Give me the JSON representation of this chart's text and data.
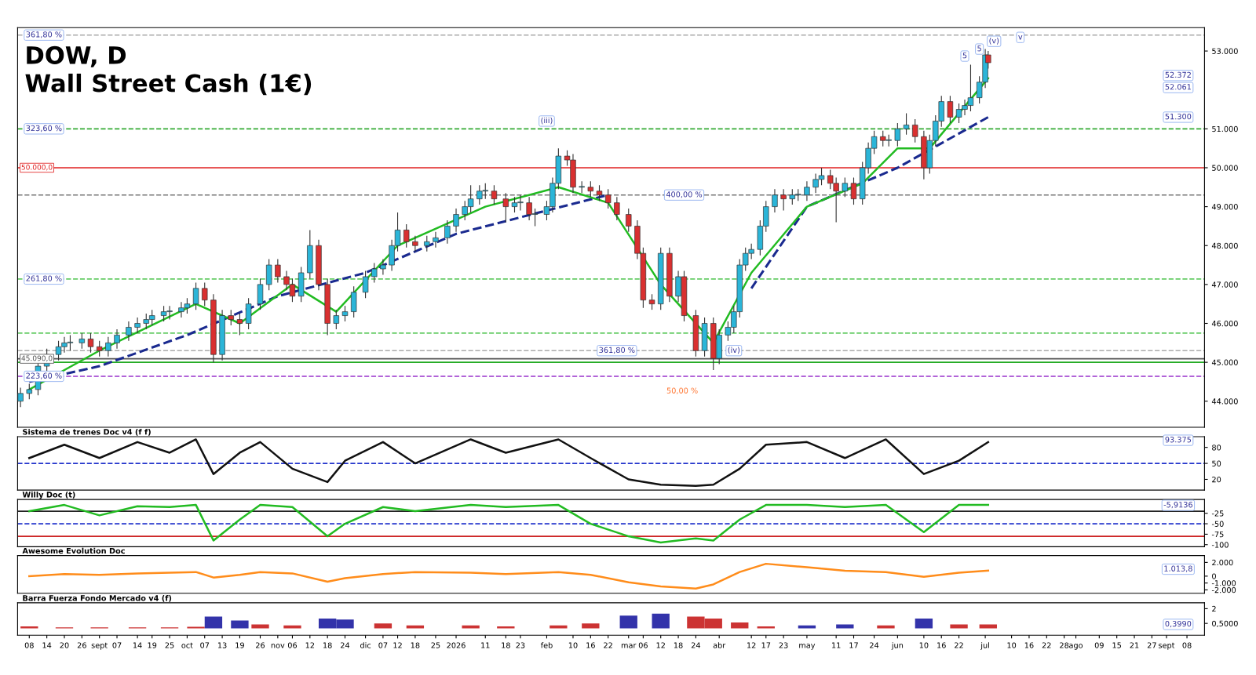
{
  "chart_data": [
    {
      "type": "candlestick",
      "title": "DOW, D",
      "subtitle": "Wall Street Cash (1€)",
      "x": [
        "2025-08-05",
        "2025-08-08",
        "2025-08-11",
        "2025-08-14",
        "2025-08-18",
        "2025-08-20",
        "2025-08-22",
        "2025-08-26",
        "2025-08-29",
        "2025-09-01",
        "2025-09-04",
        "2025-09-07",
        "2025-09-11",
        "2025-09-14",
        "2025-09-17",
        "2025-09-19",
        "2025-09-23",
        "2025-09-25",
        "2025-09-29",
        "2025-10-01",
        "2025-10-04",
        "2025-10-07",
        "2025-10-10",
        "2025-10-13",
        "2025-10-16",
        "2025-10-19",
        "2025-10-22",
        "2025-10-26",
        "2025-10-29",
        "2025-11-01",
        "2025-11-04",
        "2025-11-06",
        "2025-11-09",
        "2025-11-12",
        "2025-11-15",
        "2025-11-18",
        "2025-11-21",
        "2025-11-24",
        "2025-11-27",
        "2025-12-01",
        "2025-12-04",
        "2025-12-07",
        "2025-12-10",
        "2025-12-12",
        "2025-12-15",
        "2025-12-18",
        "2025-12-22",
        "2025-12-25",
        "2025-12-29",
        "2026-01-01",
        "2026-01-04",
        "2026-01-06",
        "2026-01-09",
        "2026-01-11",
        "2026-01-14",
        "2026-01-18",
        "2026-01-21",
        "2026-01-23",
        "2026-01-26",
        "2026-01-28",
        "2026-02-01",
        "2026-02-03",
        "2026-02-05",
        "2026-02-08",
        "2026-02-10",
        "2026-02-13",
        "2026-02-16",
        "2026-02-19",
        "2026-02-22",
        "2026-02-25",
        "2026-03-01",
        "2026-03-04",
        "2026-03-06",
        "2026-03-09",
        "2026-03-12",
        "2026-03-15",
        "2026-03-18",
        "2026-03-20",
        "2026-03-24",
        "2026-03-27",
        "2026-03-30",
        "2026-04-01",
        "2026-04-04",
        "2026-04-06",
        "2026-04-08",
        "2026-04-10",
        "2026-04-12",
        "2026-04-15",
        "2026-04-17",
        "2026-04-20",
        "2026-04-23",
        "2026-04-26",
        "2026-04-28",
        "2026-05-01",
        "2026-05-04",
        "2026-05-06",
        "2026-05-09",
        "2026-05-11",
        "2026-05-14",
        "2026-05-17",
        "2026-05-20",
        "2026-05-22",
        "2026-05-24",
        "2026-05-27",
        "2026-05-29",
        "2026-06-01",
        "2026-06-04",
        "2026-06-07",
        "2026-06-10",
        "2026-06-12",
        "2026-06-14",
        "2026-06-16",
        "2026-06-19",
        "2026-06-22",
        "2026-06-24",
        "2026-06-26",
        "2026-06-29",
        "2026-07-01",
        "2026-07-02"
      ],
      "ohlc": [
        [
          44000,
          44350,
          43850,
          44200
        ],
        [
          44200,
          44450,
          44050,
          44300
        ],
        [
          44300,
          45050,
          44150,
          44900
        ],
        [
          44900,
          45350,
          44750,
          45200
        ],
        [
          45200,
          45550,
          45050,
          45400
        ],
        [
          45400,
          45650,
          45250,
          45500
        ],
        [
          45500,
          45700,
          45300,
          45500
        ],
        [
          45500,
          45750,
          45350,
          45600
        ],
        [
          45600,
          45750,
          45250,
          45400
        ],
        [
          45400,
          45550,
          45150,
          45300
        ],
        [
          45300,
          45650,
          45150,
          45500
        ],
        [
          45500,
          45850,
          45350,
          45700
        ],
        [
          45700,
          46050,
          45550,
          45900
        ],
        [
          45900,
          46150,
          45750,
          46000
        ],
        [
          46000,
          46250,
          45850,
          46100
        ],
        [
          46100,
          46350,
          45950,
          46200
        ],
        [
          46200,
          46450,
          46050,
          46300
        ],
        [
          46300,
          46450,
          46100,
          46300
        ],
        [
          46300,
          46550,
          46150,
          46400
        ],
        [
          46400,
          46650,
          46250,
          46500
        ],
        [
          46500,
          47050,
          46350,
          46900
        ],
        [
          46900,
          47050,
          46450,
          46600
        ],
        [
          46600,
          46750,
          45000,
          45200
        ],
        [
          45200,
          46350,
          45050,
          46200
        ],
        [
          46200,
          46350,
          45950,
          46100
        ],
        [
          46100,
          46250,
          45700,
          46000
        ],
        [
          46000,
          46650,
          45850,
          46500
        ],
        [
          46500,
          47150,
          46350,
          47000
        ],
        [
          47000,
          47650,
          46850,
          47500
        ],
        [
          47500,
          47650,
          47050,
          47200
        ],
        [
          47200,
          47350,
          46850,
          47000
        ],
        [
          47000,
          47150,
          46550,
          46700
        ],
        [
          46700,
          47450,
          46550,
          47300
        ],
        [
          47300,
          48400,
          47150,
          48000
        ],
        [
          48000,
          48150,
          46850,
          47000
        ],
        [
          47000,
          47150,
          45700,
          46000
        ],
        [
          46000,
          46350,
          45850,
          46200
        ],
        [
          46200,
          46450,
          46050,
          46300
        ],
        [
          46300,
          46950,
          46150,
          46800
        ],
        [
          46800,
          47350,
          46650,
          47200
        ],
        [
          47200,
          47550,
          47050,
          47400
        ],
        [
          47400,
          47650,
          47250,
          47500
        ],
        [
          47500,
          48150,
          47350,
          48000
        ],
        [
          48000,
          48850,
          47850,
          48400
        ],
        [
          48400,
          48550,
          47950,
          48100
        ],
        [
          48100,
          48250,
          47850,
          48000
        ],
        [
          48000,
          48250,
          47850,
          48100
        ],
        [
          48100,
          48350,
          47950,
          48200
        ],
        [
          48200,
          48650,
          48050,
          48500
        ],
        [
          48500,
          48950,
          48350,
          48800
        ],
        [
          48800,
          49150,
          48650,
          49000
        ],
        [
          49000,
          49550,
          48850,
          49200
        ],
        [
          49200,
          49550,
          49050,
          49400
        ],
        [
          49400,
          49600,
          49200,
          49400
        ],
        [
          49400,
          49550,
          49050,
          49200
        ],
        [
          49200,
          49350,
          48600,
          49000
        ],
        [
          49000,
          49250,
          48850,
          49100
        ],
        [
          49100,
          49300,
          48900,
          49100
        ],
        [
          49100,
          49250,
          48650,
          48800
        ],
        [
          48800,
          48950,
          48500,
          48800
        ],
        [
          48800,
          49150,
          48650,
          49000
        ],
        [
          49000,
          49750,
          48850,
          49600
        ],
        [
          49600,
          50500,
          49450,
          50300
        ],
        [
          50300,
          50450,
          50050,
          50200
        ],
        [
          50200,
          50350,
          49350,
          49500
        ],
        [
          49500,
          49650,
          49350,
          49500
        ],
        [
          49500,
          49650,
          49250,
          49400
        ],
        [
          49400,
          49550,
          49150,
          49300
        ],
        [
          49300,
          49450,
          48950,
          49100
        ],
        [
          49100,
          49250,
          48650,
          48800
        ],
        [
          48800,
          48950,
          48350,
          48500
        ],
        [
          48500,
          48650,
          47650,
          47800
        ],
        [
          47800,
          47950,
          46400,
          46600
        ],
        [
          46600,
          46750,
          46350,
          46500
        ],
        [
          46500,
          47950,
          46350,
          47800
        ],
        [
          47800,
          47950,
          46550,
          46700
        ],
        [
          46700,
          47350,
          46550,
          47200
        ],
        [
          47200,
          47350,
          46050,
          46200
        ],
        [
          46200,
          46350,
          45150,
          45300
        ],
        [
          45300,
          46150,
          45150,
          46000
        ],
        [
          46000,
          46150,
          44800,
          45100
        ],
        [
          45100,
          45850,
          44950,
          45700
        ],
        [
          45700,
          46050,
          45550,
          45900
        ],
        [
          45900,
          46450,
          45750,
          46300
        ],
        [
          46300,
          47650,
          46150,
          47500
        ],
        [
          47500,
          47950,
          47350,
          47800
        ],
        [
          47800,
          48050,
          47650,
          47900
        ],
        [
          47900,
          48650,
          47750,
          48500
        ],
        [
          48500,
          49150,
          48350,
          49000
        ],
        [
          49000,
          49450,
          48850,
          49300
        ],
        [
          49300,
          49450,
          48900,
          49200
        ],
        [
          49200,
          49450,
          49050,
          49300
        ],
        [
          49300,
          49450,
          49150,
          49300
        ],
        [
          49300,
          49650,
          49150,
          49500
        ],
        [
          49500,
          49850,
          49350,
          49700
        ],
        [
          49700,
          50000,
          49550,
          49800
        ],
        [
          49800,
          49950,
          49450,
          49600
        ],
        [
          49600,
          49750,
          48600,
          49400
        ],
        [
          49400,
          49750,
          49250,
          49600
        ],
        [
          49600,
          49750,
          49050,
          49200
        ],
        [
          49200,
          50150,
          49050,
          50000
        ],
        [
          50000,
          50650,
          49850,
          50500
        ],
        [
          50500,
          50950,
          50350,
          50800
        ],
        [
          50800,
          50950,
          50550,
          50700
        ],
        [
          50700,
          50850,
          50550,
          50700
        ],
        [
          50700,
          51150,
          50550,
          51000
        ],
        [
          51000,
          51400,
          50850,
          51100
        ],
        [
          51100,
          51250,
          50650,
          50800
        ],
        [
          50800,
          50950,
          49700,
          50000
        ],
        [
          50000,
          50850,
          49850,
          50700
        ],
        [
          50700,
          51350,
          50550,
          51200
        ],
        [
          51200,
          51850,
          51050,
          51700
        ],
        [
          51700,
          51850,
          51150,
          51300
        ],
        [
          51300,
          51650,
          51150,
          51500
        ],
        [
          51500,
          51750,
          51350,
          51600
        ],
        [
          51600,
          52650,
          51450,
          51800
        ],
        [
          51800,
          52350,
          51650,
          52200
        ],
        [
          52200,
          53050,
          52050,
          52900
        ],
        [
          52900,
          53000,
          52550,
          52700
        ]
      ],
      "series": [
        {
          "type": "line",
          "line_style": "dashed",
          "color": "#1a2a8f",
          "x": [
            "2025-08-08",
            "2025-09-01",
            "2025-10-01",
            "2025-11-01",
            "2025-12-01",
            "2026-01-01",
            "2026-02-01",
            "2026-02-22",
            "2026-03-15",
            "2026-04-12",
            "2026-05-01",
            "2026-06-01",
            "2026-07-02"
          ],
          "values": [
            44500,
            44900,
            45700,
            46700,
            47300,
            48300,
            48900,
            49300,
            null,
            46900,
            49000,
            50000,
            51300
          ]
        },
        {
          "type": "line",
          "line_style": "solid",
          "color": "#22bb22",
          "x": [
            "2025-08-08",
            "2025-09-01",
            "2025-10-04",
            "2025-10-19",
            "2025-11-06",
            "2025-11-21",
            "2025-12-12",
            "2026-01-11",
            "2026-02-05",
            "2026-02-22",
            "2026-03-12",
            "2026-03-30",
            "2026-04-12",
            "2026-05-01",
            "2026-05-20",
            "2026-06-01",
            "2026-06-12",
            "2026-07-02"
          ],
          "values": [
            44300,
            45300,
            46500,
            46000,
            47000,
            46300,
            48000,
            49000,
            49500,
            49100,
            47000,
            45500,
            47300,
            49000,
            49600,
            50500,
            50500,
            52300
          ]
        }
      ],
      "xlim": [
        "2025-08-04",
        "2026-09-14"
      ],
      "ylim": [
        43330,
        53600
      ],
      "yticks": [
        {
          "value": 44000,
          "label": "44.000"
        },
        {
          "value": 45000,
          "label": "45.000"
        },
        {
          "value": 46000,
          "label": "46.000"
        },
        {
          "value": 47000,
          "label": "47.000"
        },
        {
          "value": 48000,
          "label": "48.000"
        },
        {
          "value": 49000,
          "label": "49.000"
        },
        {
          "value": 50000,
          "label": "50.000"
        },
        {
          "value": 51000,
          "label": "51.000"
        },
        {
          "value": 53000,
          "label": "53.000"
        }
      ],
      "ref_lines": [
        {
          "axis": "y",
          "value": 50000,
          "label": "50.000,0",
          "color": "#e02020",
          "line_style": "solid"
        },
        {
          "axis": "y",
          "value": 45090,
          "label": "45.090,0",
          "color": "#555555",
          "line_style": "solid"
        },
        {
          "axis": "y",
          "value": 45000,
          "label": null,
          "color": "#22aa22",
          "line_style": "solid"
        },
        {
          "axis": "y",
          "value": 53410,
          "label": null,
          "color": "#aaaaaa",
          "line_style": "dashed"
        },
        {
          "axis": "y",
          "value": 51000,
          "label": null,
          "color": "#33aa33",
          "line_style": "dashed"
        },
        {
          "axis": "y",
          "value": 49300,
          "label": null,
          "color": "#777777",
          "line_style": "dashed"
        },
        {
          "axis": "y",
          "value": 47140,
          "label": null,
          "color": "#66cc66",
          "line_style": "dashed"
        },
        {
          "axis": "y",
          "value": 45750,
          "label": null,
          "color": "#66cc66",
          "line_style": "dashed"
        },
        {
          "axis": "y",
          "value": 45300,
          "label": null,
          "color": "#aaaaaa",
          "line_style": "dashed"
        },
        {
          "axis": "y",
          "value": 44640,
          "label": null,
          "color": "#9933cc",
          "line_style": "dashed"
        }
      ],
      "annotations": [
        {
          "text": "(iii)",
          "x": "2026-02-01",
          "y": 51200
        },
        {
          "text": "(iv)",
          "x": "2026-04-06",
          "y": 45300
        },
        {
          "text": "5",
          "x": "2026-06-24",
          "y": 52870
        },
        {
          "text": "5",
          "x": "2026-06-29",
          "y": 53050
        },
        {
          "text": "(v)",
          "x": "2026-07-04",
          "y": 53250
        },
        {
          "text": "v",
          "x": "2026-07-13",
          "y": 53350
        },
        {
          "text": "361,80 %",
          "x": "2025-08-13",
          "y": 53410
        },
        {
          "text": "323,60 %",
          "x": "2025-08-13",
          "y": 51000
        },
        {
          "text": "400,00 %",
          "x": "2026-03-20",
          "y": 49300
        },
        {
          "text": "261,80 %",
          "x": "2025-08-13",
          "y": 47140
        },
        {
          "text": "361,80 %",
          "x": "2026-02-25",
          "y": 45300
        },
        {
          "text": "223,60 %",
          "x": "2025-08-13",
          "y": 44640
        },
        "50,00 %",
        {
          "text": "52.372",
          "x": "2026-09-05",
          "y": 52372
        },
        {
          "text": "52.061",
          "x": "2026-09-05",
          "y": 52061
        },
        {
          "text": "51.300",
          "x": "2026-09-05",
          "y": 51300
        }
      ],
      "tick_labels": "y"
    },
    {
      "type": "line",
      "title": "Sistema de trenes Doc v4 (f f)",
      "xlim": [
        "2025-08-04",
        "2026-09-14"
      ],
      "ylim": [
        0,
        100
      ],
      "yticks": [
        20,
        50,
        80
      ],
      "tick_labels": "y",
      "series": [
        {
          "color": "#111111",
          "x": [
            "2025-08-08",
            "2025-08-20",
            "2025-09-01",
            "2025-09-14",
            "2025-09-25",
            "2025-10-04",
            "2025-10-10",
            "2025-10-19",
            "2025-10-26",
            "2025-11-06",
            "2025-11-18",
            "2025-11-24",
            "2025-12-07",
            "2025-12-18",
            "2026-01-06",
            "2026-01-18",
            "2026-02-05",
            "2026-02-16",
            "2026-03-01",
            "2026-03-12",
            "2026-03-24",
            "2026-03-30",
            "2026-04-08",
            "2026-04-17",
            "2026-05-01",
            "2026-05-14",
            "2026-05-28",
            "2026-06-10",
            "2026-06-22",
            "2026-07-02"
          ],
          "values": [
            60,
            85,
            60,
            90,
            70,
            95,
            30,
            70,
            90,
            40,
            15,
            55,
            90,
            50,
            95,
            70,
            95,
            60,
            20,
            10,
            8,
            10,
            40,
            85,
            90,
            60,
            95,
            30,
            55,
            90
          ]
        }
      ],
      "ref_lines": [
        {
          "axis": "y",
          "value": 50,
          "label": null,
          "color": "#2233cc",
          "line_style": "dashed"
        }
      ],
      "annotations": [
        {
          "text": "93.375",
          "x": "2026-09-05",
          "y": 93.375
        }
      ]
    },
    {
      "type": "line",
      "title": "Willy Doc (t)",
      "xlim": [
        "2025-08-04",
        "2026-09-14"
      ],
      "ylim": [
        -105,
        8
      ],
      "yticks": [
        -25,
        -50,
        -75,
        -100
      ],
      "tick_labels": "y",
      "series": [
        {
          "color": "#22bb22",
          "x": [
            "2025-08-08",
            "2025-08-20",
            "2025-09-01",
            "2025-09-14",
            "2025-09-25",
            "2025-10-04",
            "2025-10-10",
            "2025-10-19",
            "2025-10-26",
            "2025-11-06",
            "2025-11-18",
            "2025-11-24",
            "2025-12-07",
            "2025-12-18",
            "2026-01-06",
            "2026-01-18",
            "2026-02-05",
            "2026-02-16",
            "2026-03-01",
            "2026-03-12",
            "2026-03-24",
            "2026-03-30",
            "2026-04-08",
            "2026-04-17",
            "2026-05-01",
            "2026-05-14",
            "2026-05-28",
            "2026-06-10",
            "2026-06-22",
            "2026-07-02"
          ],
          "values": [
            -20,
            -5,
            -30,
            -8,
            -10,
            -5,
            -90,
            -40,
            -5,
            -10,
            -80,
            -50,
            -10,
            -20,
            -5,
            -10,
            -5,
            -50,
            -80,
            -95,
            -85,
            -90,
            -40,
            -5,
            -5,
            -10,
            -5,
            -70,
            -5,
            -5
          ]
        }
      ],
      "ref_lines": [
        {
          "axis": "y",
          "value": -20,
          "label": null,
          "color": "#222222",
          "line_style": "solid"
        },
        {
          "axis": "y",
          "value": -50,
          "label": null,
          "color": "#2233cc",
          "line_style": "dashed"
        },
        {
          "axis": "y",
          "value": -80,
          "label": null,
          "color": "#cc2222",
          "line_style": "solid"
        }
      ],
      "annotations": [
        {
          "text": "-5,9136",
          "x": "2026-09-05",
          "y": -5.9136
        }
      ]
    },
    {
      "type": "line",
      "title": "Awesome Evolution Doc",
      "xlim": [
        "2025-08-04",
        "2026-09-14"
      ],
      "ylim": [
        -2500,
        3000
      ],
      "yticks": [
        {
          "value": 2000,
          "label": "2.000"
        },
        0,
        {
          "value": -1000,
          "label": "-1.000"
        },
        {
          "value": -2000,
          "label": "-2.000"
        }
      ],
      "tick_labels": "y",
      "series": [
        {
          "color": "#ff8c1a",
          "x": [
            "2025-08-08",
            "2025-08-20",
            "2025-09-01",
            "2025-09-14",
            "2025-09-25",
            "2025-10-04",
            "2025-10-10",
            "2025-10-19",
            "2025-10-26",
            "2025-11-06",
            "2025-11-18",
            "2025-11-24",
            "2025-12-07",
            "2025-12-18",
            "2026-01-06",
            "2026-01-18",
            "2026-02-05",
            "2026-02-16",
            "2026-03-01",
            "2026-03-12",
            "2026-03-24",
            "2026-03-30",
            "2026-04-08",
            "2026-04-17",
            "2026-05-01",
            "2026-05-14",
            "2026-05-28",
            "2026-06-10",
            "2026-06-22",
            "2026-07-02"
          ],
          "values": [
            0,
            300,
            200,
            400,
            500,
            600,
            -200,
            200,
            600,
            400,
            -800,
            -300,
            300,
            600,
            500,
            300,
            600,
            200,
            -900,
            -1500,
            -1800,
            -1200,
            600,
            1800,
            1300,
            800,
            600,
            -100,
            500,
            800
          ]
        }
      ],
      "annotations": [
        {
          "text": "1.013,8",
          "x": "2026-09-05",
          "y": 1013.8
        }
      ]
    },
    {
      "type": "bar",
      "title": "Barra Fuerza Fondo Mercado v4 (f)",
      "xlim": [
        "2025-08-04",
        "2026-09-14"
      ],
      "ylim": [
        -0.7,
        2.6
      ],
      "yticks": [
        2,
        {
          "value": 0.5,
          "label": "0,5000"
        }
      ],
      "xticks": [
        {
          "value": "2025-08-08",
          "label": "08"
        },
        {
          "value": "2025-08-14",
          "label": "14"
        },
        {
          "value": "2025-08-20",
          "label": "20"
        },
        {
          "value": "2025-08-26",
          "label": "26"
        },
        {
          "value": "2025-09-01",
          "label": "sept"
        },
        {
          "value": "2025-09-07",
          "label": "07"
        },
        {
          "value": "2025-09-14",
          "label": "14"
        },
        {
          "value": "2025-09-19",
          "label": "19"
        },
        {
          "value": "2025-09-25",
          "label": "25"
        },
        {
          "value": "2025-10-01",
          "label": "oct"
        },
        {
          "value": "2025-10-07",
          "label": "07"
        },
        {
          "value": "2025-10-13",
          "label": "13"
        },
        {
          "value": "2025-10-19",
          "label": "19"
        },
        {
          "value": "2025-10-26",
          "label": "26"
        },
        {
          "value": "2025-11-01",
          "label": "nov"
        },
        {
          "value": "2025-11-06",
          "label": "06"
        },
        {
          "value": "2025-11-12",
          "label": "12"
        },
        {
          "value": "2025-11-18",
          "label": "18"
        },
        {
          "value": "2025-11-24",
          "label": "24"
        },
        {
          "value": "2025-12-01",
          "label": "dic"
        },
        {
          "value": "2025-12-07",
          "label": "07"
        },
        {
          "value": "2025-12-12",
          "label": "12"
        },
        {
          "value": "2025-12-18",
          "label": "18"
        },
        {
          "value": "2025-12-25",
          "label": "25"
        },
        {
          "value": "2026-01-01",
          "label": "2026"
        },
        {
          "value": "2026-01-11",
          "label": "11"
        },
        {
          "value": "2026-01-18",
          "label": "18"
        },
        {
          "value": "2026-01-23",
          "label": "23"
        },
        {
          "value": "2026-02-01",
          "label": "feb"
        },
        {
          "value": "2026-02-10",
          "label": "10"
        },
        {
          "value": "2026-02-16",
          "label": "16"
        },
        {
          "value": "2026-02-22",
          "label": "22"
        },
        {
          "value": "2026-03-01",
          "label": "mar"
        },
        {
          "value": "2026-03-06",
          "label": "06"
        },
        {
          "value": "2026-03-12",
          "label": "12"
        },
        {
          "value": "2026-03-18",
          "label": "18"
        },
        {
          "value": "2026-03-24",
          "label": "24"
        },
        {
          "value": "2026-04-01",
          "label": "abr"
        },
        {
          "value": "2026-04-12",
          "label": "12"
        },
        {
          "value": "2026-04-17",
          "label": "17"
        },
        {
          "value": "2026-04-23",
          "label": "23"
        },
        {
          "value": "2026-05-01",
          "label": "may"
        },
        {
          "value": "2026-05-11",
          "label": "11"
        },
        {
          "value": "2026-05-17",
          "label": "17"
        },
        {
          "value": "2026-05-24",
          "label": "24"
        },
        {
          "value": "2026-06-01",
          "label": "jun"
        },
        {
          "value": "2026-06-10",
          "label": "10"
        },
        {
          "value": "2026-06-16",
          "label": "16"
        },
        {
          "value": "2026-06-22",
          "label": "22"
        },
        {
          "value": "2026-07-01",
          "label": "jul"
        },
        {
          "value": "2026-07-10",
          "label": "10"
        },
        {
          "value": "2026-07-16",
          "label": "16"
        },
        {
          "value": "2026-07-22",
          "label": "22"
        },
        {
          "value": "2026-07-28",
          "label": "28"
        },
        {
          "value": "2026-08-01",
          "label": "ago"
        },
        {
          "value": "2026-08-09",
          "label": "09"
        },
        {
          "value": "2026-08-15",
          "label": "15"
        },
        {
          "value": "2026-08-21",
          "label": "21"
        },
        {
          "value": "2026-08-27",
          "label": "27"
        },
        {
          "value": "2026-09-01",
          "label": "sept"
        },
        {
          "value": "2026-09-08",
          "label": "08"
        }
      ],
      "x": [
        "2025-08-08",
        "2025-08-20",
        "2025-09-01",
        "2025-09-14",
        "2025-09-25",
        "2025-10-04",
        "2025-10-10",
        "2025-10-19",
        "2025-10-26",
        "2025-11-06",
        "2025-11-18",
        "2025-11-24",
        "2025-12-07",
        "2025-12-18",
        "2026-01-06",
        "2026-01-18",
        "2026-02-05",
        "2026-02-16",
        "2026-03-01",
        "2026-03-12",
        "2026-03-24",
        "2026-03-30",
        "2026-04-08",
        "2026-04-17",
        "2026-05-01",
        "2026-05-14",
        "2026-05-28",
        "2026-06-10",
        "2026-06-22",
        "2026-07-02"
      ],
      "values": [
        0.2,
        0.1,
        0.1,
        0.1,
        0.1,
        0.15,
        1.2,
        0.8,
        0.4,
        0.3,
        1.0,
        0.9,
        0.5,
        0.3,
        0.3,
        0.2,
        0.3,
        0.5,
        1.3,
        1.5,
        1.2,
        1.0,
        0.6,
        0.2,
        0.3,
        0.4,
        0.3,
        1.0,
        0.4,
        0.4
      ],
      "colors": [
        "#cc3333",
        "#cc3333",
        "#cc3333",
        "#cc3333",
        "#cc3333",
        "#cc3333",
        "#3333aa",
        "#3333aa",
        "#cc3333",
        "#cc3333",
        "#3333aa",
        "#3333aa",
        "#cc3333",
        "#cc3333",
        "#cc3333",
        "#cc3333",
        "#cc3333",
        "#cc3333",
        "#3333aa",
        "#3333aa",
        "#cc3333",
        "#cc3333",
        "#cc3333",
        "#cc3333",
        "#3333aa",
        "#3333aa",
        "#cc3333",
        "#3333aa",
        "#cc3333",
        "#cc3333"
      ],
      "annotations": [
        {
          "text": "0,3990",
          "x": "2026-09-05",
          "y": 0.399
        }
      ]
    }
  ]
}
